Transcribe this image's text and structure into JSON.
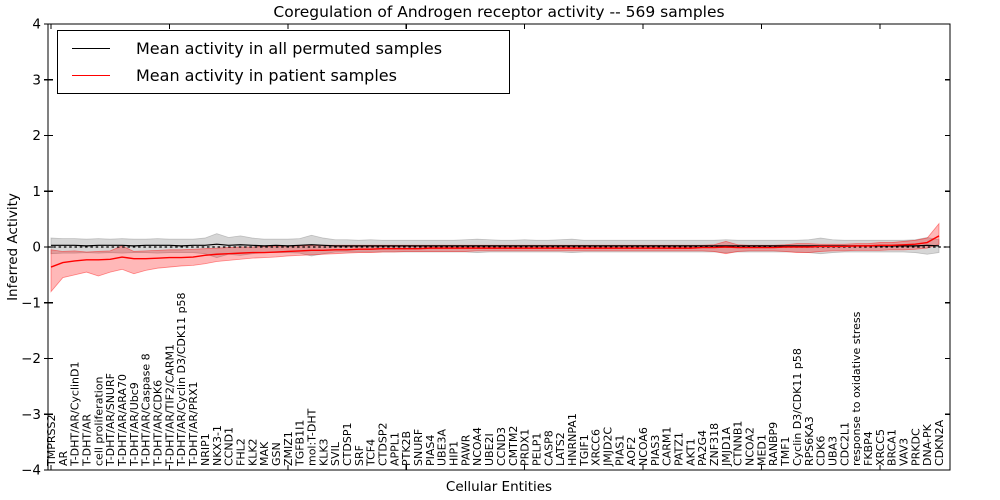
{
  "chart_data": {
    "type": "line",
    "title": "Coregulation of Androgen receptor activity -- 569 samples",
    "xlabel": "Cellular Entities",
    "ylabel": "Inferred Activity",
    "ylim": [
      -4,
      4
    ],
    "yticks": [
      4,
      3,
      2,
      1,
      0,
      -1,
      -2,
      -3,
      -4
    ],
    "ytick_labels": [
      "4",
      "3",
      "2",
      "1",
      "0",
      "−1",
      "−2",
      "−3",
      "−4"
    ],
    "xtick_every": 10,
    "grid": false,
    "legend_position": "upper-left",
    "categories": [
      "TMPRSS2",
      "AR",
      "T-DHT/AR/CyclinD1",
      "T-DHT/AR",
      "cell proliferation",
      "T-DHT/AR/SNURF",
      "T-DHT/AR/ARA70",
      "T-DHT/AR/Ubc9",
      "T-DHT/AR/Caspase 8",
      "T-DHT/AR/CDK6",
      "T-DHT/AR/TIF2/CARM1",
      "T-DHT/AR/Cyclin D3/CDK11 p58",
      "T-DHT/AR/PRX1",
      "NRIP1",
      "NKX3-1",
      "CCND1",
      "FHL2",
      "KLK2",
      "MAK",
      "GSN",
      "ZMIZ1",
      "TGFB1I1",
      "mol:T-DHT",
      "KLK3",
      "SVIL",
      "CTDSP1",
      "SRF",
      "TCF4",
      "CTDSP2",
      "APPL1",
      "PTK2B",
      "SNURF",
      "PIAS4",
      "UBE3A",
      "HIP1",
      "PAWR",
      "NCOA4",
      "UBE2I",
      "CCND3",
      "CMTM2",
      "PRDX1",
      "PELP1",
      "CASP8",
      "LATS2",
      "HNRNPA1",
      "TGIF1",
      "XRCC6",
      "JMJD2C",
      "PIAS1",
      "AOF2",
      "NCOA6",
      "PIAS3",
      "CARM1",
      "PATZ1",
      "AKT1",
      "PA2G4",
      "ZNF318",
      "JMJD1A",
      "CTNNB1",
      "NCOA2",
      "MED1",
      "RANBP9",
      "TMF1",
      "Cyclin D3/CDK11 p58",
      "RPS6KA3",
      "CDK6",
      "UBA3",
      "CDC2L1",
      "response to oxidative stress",
      "FKBP4",
      "XRCC5",
      "BRCA1",
      "VAV3",
      "PRKDC",
      "DNA-PK",
      "CDKN2A"
    ],
    "series": [
      {
        "name": "Mean activity in all permuted samples",
        "color": "#000000",
        "values": [
          0.03,
          0.03,
          0.03,
          0.02,
          0.03,
          0.03,
          0.03,
          0.02,
          0.03,
          0.03,
          0.03,
          0.02,
          0.03,
          0.03,
          0.05,
          0.03,
          0.04,
          0.03,
          0.02,
          0.03,
          0.02,
          0.03,
          0.04,
          0.03,
          0.02,
          0.02,
          0.02,
          0.02,
          0.02,
          0.02,
          0.02,
          0.02,
          0.02,
          0.02,
          0.02,
          0.02,
          0.02,
          0.02,
          0.02,
          0.02,
          0.02,
          0.02,
          0.02,
          0.02,
          0.02,
          0.02,
          0.02,
          0.02,
          0.02,
          0.02,
          0.02,
          0.02,
          0.02,
          0.02,
          0.02,
          0.02,
          0.02,
          0.02,
          0.02,
          0.02,
          0.02,
          0.02,
          0.02,
          0.02,
          0.02,
          0.02,
          0.02,
          0.02,
          0.02,
          0.02,
          0.02,
          0.02,
          0.02,
          0.02,
          0.03,
          0.02
        ]
      },
      {
        "name": "Mean activity in patient samples",
        "color": "#ff0000",
        "values": [
          -0.36,
          -0.28,
          -0.25,
          -0.23,
          -0.23,
          -0.22,
          -0.18,
          -0.21,
          -0.21,
          -0.2,
          -0.19,
          -0.19,
          -0.18,
          -0.15,
          -0.13,
          -0.12,
          -0.11,
          -0.1,
          -0.1,
          -0.09,
          -0.08,
          -0.07,
          -0.06,
          -0.06,
          -0.05,
          -0.05,
          -0.04,
          -0.04,
          -0.03,
          -0.03,
          -0.03,
          -0.03,
          -0.02,
          -0.02,
          -0.02,
          -0.02,
          -0.02,
          -0.02,
          -0.02,
          -0.02,
          -0.02,
          -0.02,
          -0.02,
          -0.02,
          -0.02,
          -0.02,
          -0.02,
          -0.02,
          -0.02,
          -0.02,
          -0.02,
          -0.02,
          -0.02,
          -0.02,
          -0.02,
          -0.01,
          -0.01,
          0.0,
          -0.01,
          -0.01,
          -0.01,
          -0.01,
          0.0,
          0.0,
          0.0,
          0.01,
          0.01,
          0.01,
          0.02,
          0.02,
          0.03,
          0.03,
          0.04,
          0.05,
          0.08,
          0.2
        ]
      }
    ],
    "bands": [
      {
        "for_series": "Mean activity in all permuted samples",
        "color": "#999999",
        "opacity": 0.4,
        "upper": [
          0.16,
          0.15,
          0.15,
          0.14,
          0.15,
          0.14,
          0.15,
          0.14,
          0.14,
          0.15,
          0.14,
          0.14,
          0.14,
          0.16,
          0.24,
          0.17,
          0.2,
          0.16,
          0.14,
          0.14,
          0.14,
          0.15,
          0.21,
          0.16,
          0.13,
          0.13,
          0.12,
          0.13,
          0.12,
          0.12,
          0.12,
          0.12,
          0.12,
          0.12,
          0.12,
          0.13,
          0.14,
          0.13,
          0.12,
          0.12,
          0.13,
          0.12,
          0.12,
          0.13,
          0.14,
          0.12,
          0.12,
          0.12,
          0.12,
          0.12,
          0.12,
          0.12,
          0.12,
          0.12,
          0.12,
          0.12,
          0.12,
          0.13,
          0.12,
          0.12,
          0.12,
          0.12,
          0.12,
          0.12,
          0.13,
          0.16,
          0.13,
          0.12,
          0.12,
          0.12,
          0.12,
          0.12,
          0.12,
          0.13,
          0.17,
          0.13
        ],
        "lower": [
          -0.12,
          -0.11,
          -0.11,
          -0.1,
          -0.11,
          -0.1,
          -0.11,
          -0.1,
          -0.1,
          -0.11,
          -0.1,
          -0.1,
          -0.1,
          -0.12,
          -0.19,
          -0.13,
          -0.15,
          -0.12,
          -0.1,
          -0.1,
          -0.1,
          -0.11,
          -0.16,
          -0.12,
          -0.09,
          -0.09,
          -0.09,
          -0.09,
          -0.09,
          -0.09,
          -0.09,
          -0.09,
          -0.09,
          -0.09,
          -0.09,
          -0.09,
          -0.1,
          -0.09,
          -0.09,
          -0.09,
          -0.09,
          -0.09,
          -0.09,
          -0.09,
          -0.1,
          -0.09,
          -0.09,
          -0.09,
          -0.09,
          -0.09,
          -0.09,
          -0.09,
          -0.09,
          -0.09,
          -0.09,
          -0.09,
          -0.09,
          -0.1,
          -0.09,
          -0.09,
          -0.09,
          -0.09,
          -0.09,
          -0.09,
          -0.1,
          -0.12,
          -0.1,
          -0.09,
          -0.09,
          -0.09,
          -0.09,
          -0.09,
          -0.09,
          -0.1,
          -0.13,
          -0.1
        ]
      },
      {
        "for_series": "Mean activity in patient samples",
        "color": "#ff0000",
        "opacity": 0.28,
        "upper": [
          -0.05,
          -0.08,
          -0.07,
          -0.09,
          -0.08,
          -0.07,
          0.02,
          -0.08,
          -0.07,
          -0.06,
          -0.05,
          -0.05,
          -0.04,
          -0.03,
          -0.02,
          -0.01,
          0.0,
          0.0,
          0.01,
          0.01,
          0.02,
          0.02,
          0.03,
          0.03,
          0.03,
          0.03,
          0.03,
          0.03,
          0.03,
          0.03,
          0.03,
          0.03,
          0.03,
          0.03,
          0.03,
          0.03,
          0.03,
          0.03,
          0.03,
          0.03,
          0.03,
          0.03,
          0.03,
          0.03,
          0.03,
          0.03,
          0.03,
          0.03,
          0.03,
          0.03,
          0.03,
          0.03,
          0.03,
          0.03,
          0.03,
          0.03,
          0.04,
          0.1,
          0.04,
          0.03,
          0.03,
          0.03,
          0.04,
          0.06,
          0.06,
          0.05,
          0.05,
          0.05,
          0.06,
          0.06,
          0.08,
          0.08,
          0.1,
          0.12,
          0.16,
          0.42
        ],
        "lower": [
          -0.8,
          -0.55,
          -0.5,
          -0.45,
          -0.52,
          -0.45,
          -0.4,
          -0.48,
          -0.42,
          -0.38,
          -0.36,
          -0.34,
          -0.33,
          -0.3,
          -0.26,
          -0.24,
          -0.22,
          -0.2,
          -0.19,
          -0.18,
          -0.16,
          -0.15,
          -0.14,
          -0.13,
          -0.12,
          -0.11,
          -0.1,
          -0.1,
          -0.09,
          -0.09,
          -0.08,
          -0.08,
          -0.08,
          -0.08,
          -0.08,
          -0.08,
          -0.07,
          -0.07,
          -0.07,
          -0.07,
          -0.07,
          -0.07,
          -0.07,
          -0.07,
          -0.07,
          -0.07,
          -0.07,
          -0.07,
          -0.07,
          -0.07,
          -0.07,
          -0.07,
          -0.07,
          -0.07,
          -0.07,
          -0.07,
          -0.08,
          -0.12,
          -0.08,
          -0.07,
          -0.07,
          -0.07,
          -0.08,
          -0.1,
          -0.1,
          -0.08,
          -0.07,
          -0.07,
          -0.06,
          -0.06,
          -0.06,
          -0.05,
          -0.05,
          -0.04,
          -0.02,
          0.05
        ]
      }
    ],
    "zero_line": {
      "style": "dashed",
      "color": "#000000",
      "y": 0
    }
  }
}
